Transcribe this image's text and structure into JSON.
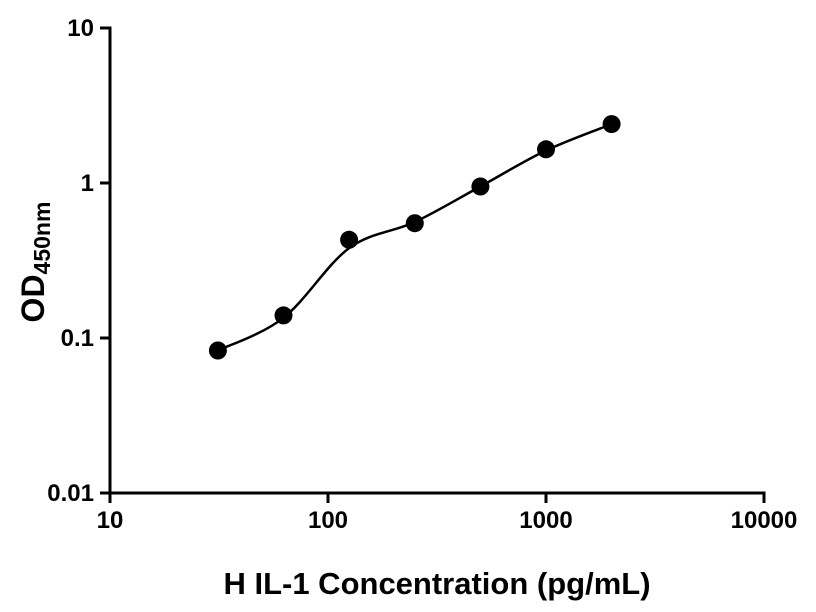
{
  "chart_data": {
    "type": "scatter",
    "title": "",
    "xlabel": "H IL-1 Concentration (pg/mL)",
    "ylabel_main": "OD",
    "ylabel_sub": "450nm",
    "x_scale": "log",
    "y_scale": "log",
    "xlim": [
      10,
      10000
    ],
    "ylim": [
      0.01,
      10
    ],
    "x_ticks": {
      "values": [
        10,
        100,
        1000,
        10000
      ],
      "labels": [
        "10",
        "100",
        "1000",
        "10000"
      ]
    },
    "y_ticks": {
      "values": [
        0.01,
        0.1,
        1,
        10
      ],
      "labels": [
        "0.01",
        "0.1",
        "1",
        "10"
      ]
    },
    "grid": false,
    "legend": "none",
    "background": "#ffffff",
    "axis_color": "#000000",
    "series": [
      {
        "name": "standard-points",
        "type": "scatter",
        "marker": "filled-circle",
        "marker_radius": 9,
        "color": "#000000",
        "x": [
          31.25,
          62.5,
          125,
          250,
          500,
          1000,
          2000
        ],
        "y": [
          0.083,
          0.14,
          0.43,
          0.55,
          0.95,
          1.65,
          2.4
        ]
      },
      {
        "name": "fit-curve",
        "type": "line",
        "color": "#000000",
        "stroke_width": 2.5,
        "x": [
          31.25,
          62.5,
          125,
          250,
          500,
          1000,
          2000
        ],
        "y": [
          0.083,
          0.135,
          0.38,
          0.56,
          0.95,
          1.62,
          2.4
        ]
      }
    ]
  }
}
